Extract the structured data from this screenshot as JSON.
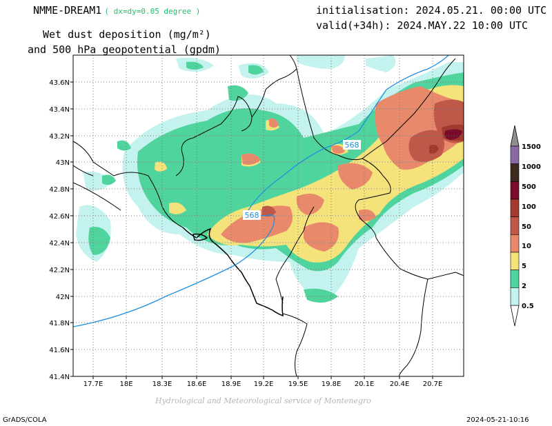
{
  "header": {
    "model": "NMME-DREAM1",
    "resolution": "( dx=dy=0.05 degree )",
    "initialisation": "initialisation: 2024.05.21. 00:00 UTC",
    "valid": "valid(+34h): 2024.MAY.22 10:00 UTC",
    "title_line1": "Wet dust deposition (mg/m²)",
    "title_line2": "and 500 hPa geopotential (gpdm)"
  },
  "map": {
    "lon_ticks": [
      "17.7E",
      "18E",
      "18.3E",
      "18.6E",
      "18.9E",
      "19.2E",
      "19.5E",
      "19.8E",
      "20.1E",
      "20.4E",
      "20.7E"
    ],
    "lat_ticks": [
      "43.6N",
      "43.4N",
      "43.2N",
      "43N",
      "42.8N",
      "42.6N",
      "42.4N",
      "42.2N",
      "42N",
      "41.8N",
      "41.6N",
      "41.4N"
    ],
    "contour_labels": [
      "568",
      "568"
    ],
    "grid": true
  },
  "legend": {
    "levels": [
      "1500",
      "1000",
      "500",
      "100",
      "50",
      "10",
      "5",
      "2",
      "0.5"
    ],
    "colors": [
      "#8a6aa4",
      "#3c2a1e",
      "#7b0b2a",
      "#a23a30",
      "#c0584a",
      "#e9896c",
      "#f4e27a",
      "#4fd49e",
      "#c4f2ee"
    ]
  },
  "colors": {
    "c05": "#c4f2ee",
    "c2": "#4fd49e",
    "c5": "#f4e27a",
    "c10": "#e9896c",
    "c50": "#c0584a",
    "c100": "#a23a30",
    "c500": "#7b0b2a",
    "geopotential": "#1f8fe0"
  },
  "footer": {
    "credit": "Hydrological and Meteorological service of Montenegro",
    "software": "GrADS/COLA",
    "timestamp": "2024-05-21-10:16"
  }
}
